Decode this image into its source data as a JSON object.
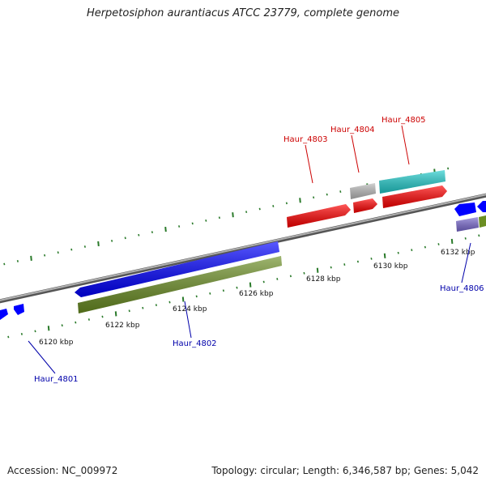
{
  "title": "Herpetosiphon aurantiacus ATCC 23779, complete genome",
  "footer": {
    "accession": "Accession: NC_009972",
    "summary": "Topology: circular; Length: 6,346,587 bp; Genes: 5,042"
  },
  "colors": {
    "backbone": "#8a8a8a",
    "tick_marks": "#2a7a2a",
    "gene_forward": "#ff0000",
    "gene_reverse": "#0000ff",
    "gene_cyan": "#22cccc",
    "gene_grey": "#bbbbbb",
    "gene_olive": "#6b8e23",
    "gene_purple": "#7a6ad0",
    "label_forward": "#cc0000",
    "label_reverse": "#0000aa"
  },
  "scale": {
    "unit": "kbp",
    "ticks": [
      {
        "label": "6120 kbp"
      },
      {
        "label": "6122 kbp"
      },
      {
        "label": "6124 kbp"
      },
      {
        "label": "6126 kbp"
      },
      {
        "label": "6128 kbp"
      },
      {
        "label": "6130 kbp"
      },
      {
        "label": "6132 kbp"
      }
    ]
  },
  "gene_labels": [
    {
      "name": "Haur_4801",
      "strand": "reverse"
    },
    {
      "name": "Haur_4802",
      "strand": "reverse"
    },
    {
      "name": "Haur_4803",
      "strand": "forward"
    },
    {
      "name": "Haur_4804",
      "strand": "forward"
    },
    {
      "name": "Haur_4805",
      "strand": "forward"
    },
    {
      "name": "Haur_4806",
      "strand": "reverse"
    }
  ]
}
